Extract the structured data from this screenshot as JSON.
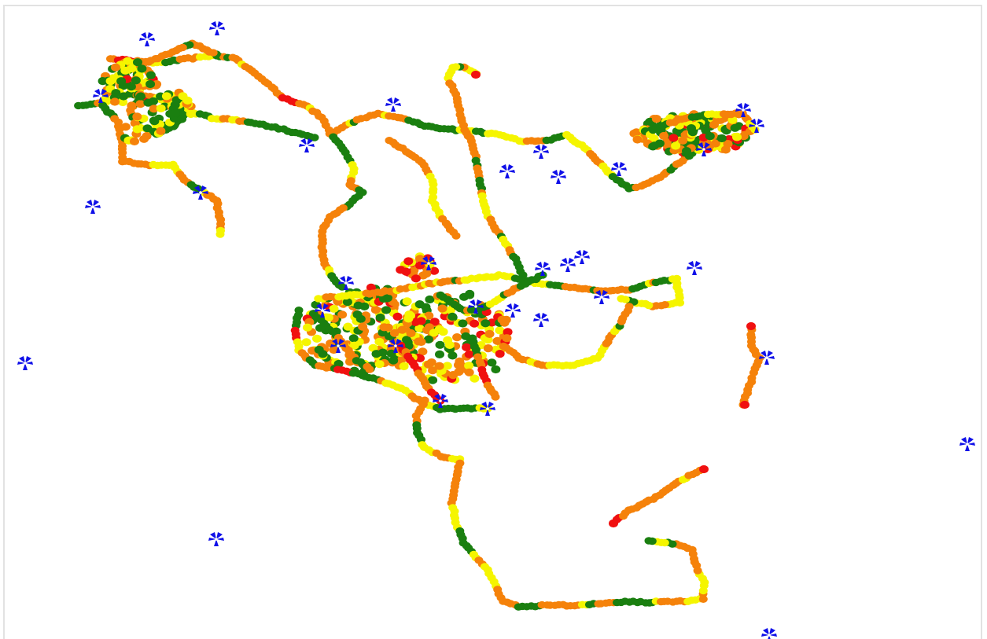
{
  "map": {
    "legend_colors": {
      "good": "#1a7f10",
      "moderate": "#f5f500",
      "poor": "#f5820a",
      "bad": "#f01010"
    },
    "marker_icon": "fan-tower-icon",
    "marker_colors": {
      "blade": "#1010e8",
      "hub": "#ffffff"
    }
  }
}
